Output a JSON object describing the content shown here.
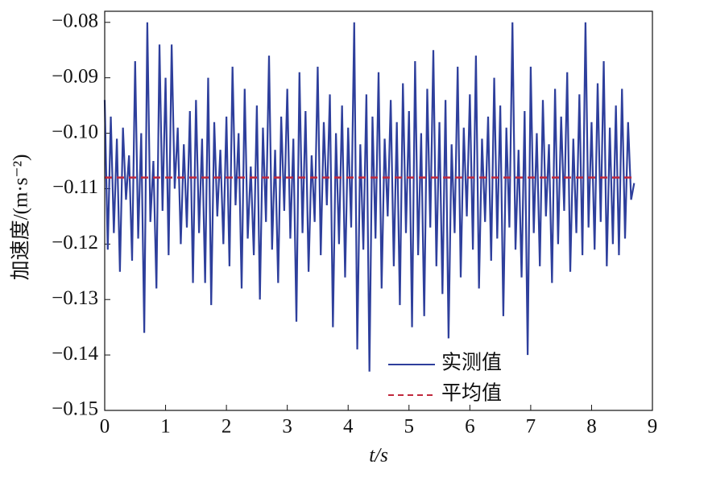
{
  "chart_data": {
    "type": "line",
    "xlabel": "t/s",
    "ylabel": "加速度/(m·s⁻²)",
    "xlim": [
      0,
      9
    ],
    "xticks": [
      0,
      1,
      2,
      3,
      4,
      5,
      6,
      7,
      8,
      9
    ],
    "ylim": [
      -0.15,
      -0.078
    ],
    "yticks": [
      {
        "value": -0.15,
        "label": "−0.15"
      },
      {
        "value": -0.14,
        "label": "−0.14"
      },
      {
        "value": -0.13,
        "label": "−0.13"
      },
      {
        "value": -0.12,
        "label": "−0.12"
      },
      {
        "value": -0.11,
        "label": "−0.11"
      },
      {
        "value": -0.1,
        "label": "−0.10"
      },
      {
        "value": -0.09,
        "label": "−0.09"
      },
      {
        "value": -0.08,
        "label": "−0.08"
      }
    ],
    "legend": "lower-center",
    "series": [
      {
        "name": "实测值",
        "color": "#2e3f9c",
        "dash": false,
        "x": [
          0,
          0.05,
          0.1,
          0.15,
          0.2,
          0.25,
          0.3,
          0.35,
          0.4,
          0.45,
          0.5,
          0.55,
          0.6,
          0.65,
          0.7,
          0.75,
          0.8,
          0.85,
          0.9,
          0.95,
          1,
          1.05,
          1.1,
          1.15,
          1.2,
          1.25,
          1.3,
          1.35,
          1.4,
          1.45,
          1.5,
          1.55,
          1.6,
          1.65,
          1.7,
          1.75,
          1.8,
          1.85,
          1.9,
          1.95,
          2,
          2.05,
          2.1,
          2.15,
          2.2,
          2.25,
          2.3,
          2.35,
          2.4,
          2.45,
          2.5,
          2.55,
          2.6,
          2.65,
          2.7,
          2.75,
          2.8,
          2.85,
          2.9,
          2.95,
          3,
          3.05,
          3.1,
          3.15,
          3.2,
          3.25,
          3.3,
          3.35,
          3.4,
          3.45,
          3.5,
          3.55,
          3.6,
          3.65,
          3.7,
          3.75,
          3.8,
          3.85,
          3.9,
          3.95,
          4,
          4.05,
          4.1,
          4.15,
          4.2,
          4.25,
          4.3,
          4.35,
          4.4,
          4.45,
          4.5,
          4.55,
          4.6,
          4.65,
          4.7,
          4.75,
          4.8,
          4.85,
          4.9,
          4.95,
          5,
          5.05,
          5.1,
          5.15,
          5.2,
          5.25,
          5.3,
          5.35,
          5.4,
          5.45,
          5.5,
          5.55,
          5.6,
          5.65,
          5.7,
          5.75,
          5.8,
          5.85,
          5.9,
          5.95,
          6,
          6.05,
          6.1,
          6.15,
          6.2,
          6.25,
          6.3,
          6.35,
          6.4,
          6.45,
          6.5,
          6.55,
          6.6,
          6.65,
          6.7,
          6.75,
          6.8,
          6.85,
          6.9,
          6.95,
          7,
          7.05,
          7.1,
          7.15,
          7.2,
          7.25,
          7.3,
          7.35,
          7.4,
          7.45,
          7.5,
          7.55,
          7.6,
          7.65,
          7.7,
          7.75,
          7.8,
          7.85,
          7.9,
          7.95,
          8,
          8.05,
          8.1,
          8.15,
          8.2,
          8.25,
          8.3,
          8.35,
          8.4,
          8.45,
          8.5,
          8.55,
          8.6,
          8.65,
          8.7
        ],
        "values": [
          -0.094,
          -0.121,
          -0.097,
          -0.118,
          -0.101,
          -0.125,
          -0.099,
          -0.112,
          -0.104,
          -0.123,
          -0.087,
          -0.119,
          -0.1,
          -0.136,
          -0.08,
          -0.116,
          -0.105,
          -0.128,
          -0.084,
          -0.114,
          -0.09,
          -0.122,
          -0.084,
          -0.11,
          -0.099,
          -0.12,
          -0.102,
          -0.117,
          -0.096,
          -0.127,
          -0.094,
          -0.118,
          -0.101,
          -0.127,
          -0.09,
          -0.131,
          -0.098,
          -0.115,
          -0.103,
          -0.12,
          -0.097,
          -0.124,
          -0.088,
          -0.113,
          -0.1,
          -0.128,
          -0.092,
          -0.119,
          -0.106,
          -0.122,
          -0.095,
          -0.13,
          -0.099,
          -0.116,
          -0.086,
          -0.121,
          -0.103,
          -0.127,
          -0.097,
          -0.114,
          -0.092,
          -0.119,
          -0.101,
          -0.134,
          -0.089,
          -0.118,
          -0.096,
          -0.125,
          -0.104,
          -0.116,
          -0.088,
          -0.122,
          -0.098,
          -0.113,
          -0.093,
          -0.135,
          -0.1,
          -0.12,
          -0.095,
          -0.126,
          -0.099,
          -0.117,
          -0.08,
          -0.139,
          -0.102,
          -0.121,
          -0.093,
          -0.143,
          -0.097,
          -0.119,
          -0.089,
          -0.128,
          -0.101,
          -0.115,
          -0.094,
          -0.124,
          -0.098,
          -0.131,
          -0.091,
          -0.118,
          -0.096,
          -0.135,
          -0.087,
          -0.122,
          -0.1,
          -0.133,
          -0.092,
          -0.117,
          -0.085,
          -0.124,
          -0.098,
          -0.129,
          -0.094,
          -0.137,
          -0.102,
          -0.118,
          -0.088,
          -0.126,
          -0.099,
          -0.115,
          -0.093,
          -0.121,
          -0.086,
          -0.128,
          -0.101,
          -0.116,
          -0.097,
          -0.123,
          -0.09,
          -0.119,
          -0.095,
          -0.133,
          -0.099,
          -0.117,
          -0.08,
          -0.121,
          -0.103,
          -0.126,
          -0.096,
          -0.14,
          -0.088,
          -0.118,
          -0.1,
          -0.124,
          -0.094,
          -0.115,
          -0.102,
          -0.127,
          -0.092,
          -0.12,
          -0.097,
          -0.114,
          -0.089,
          -0.125,
          -0.101,
          -0.118,
          -0.093,
          -0.122,
          -0.08,
          -0.117,
          -0.098,
          -0.121,
          -0.091,
          -0.116,
          -0.087,
          -0.124,
          -0.099,
          -0.12,
          -0.095,
          -0.122,
          -0.092,
          -0.119,
          -0.098,
          -0.112,
          -0.109
        ]
      },
      {
        "name": "平均值",
        "color": "#c0283c",
        "dash": true,
        "x": [
          0,
          8.7
        ],
        "values": [
          -0.108,
          -0.108
        ]
      }
    ]
  }
}
